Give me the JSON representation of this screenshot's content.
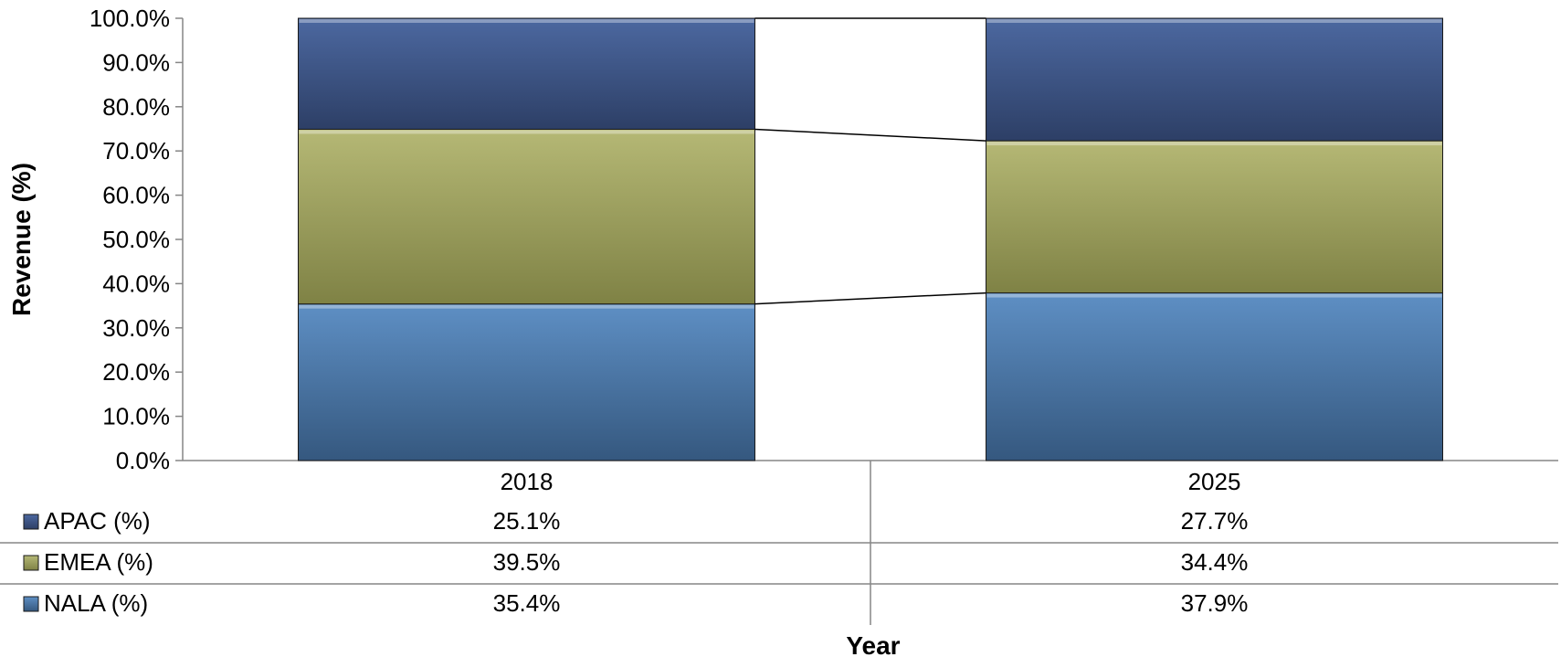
{
  "chart_data": {
    "type": "bar",
    "stacked": true,
    "percent": true,
    "categories": [
      "2018",
      "2025"
    ],
    "series": [
      {
        "name": "NALA (%)",
        "values": [
          35.4,
          37.9
        ],
        "labels": [
          "35.4%",
          "37.9%"
        ],
        "color": "#4A78A8"
      },
      {
        "name": "EMEA (%)",
        "values": [
          39.5,
          34.4
        ],
        "labels": [
          "39.5%",
          "34.4%"
        ],
        "color": "#9FA35E"
      },
      {
        "name": "APAC (%)",
        "values": [
          25.1,
          27.7
        ],
        "labels": [
          "25.1%",
          "27.7%"
        ],
        "color": "#3F5A8A"
      }
    ],
    "table_rows": [
      "APAC (%)",
      "EMEA (%)",
      "NALA (%)"
    ],
    "ylim": [
      0,
      100
    ],
    "yticks": [
      "0.0%",
      "10.0%",
      "20.0%",
      "30.0%",
      "40.0%",
      "50.0%",
      "60.0%",
      "70.0%",
      "80.0%",
      "90.0%",
      "100.0%"
    ],
    "xlabel": "Year",
    "ylabel": "Revenue (%)",
    "series_lines": true,
    "legend": "data-table"
  }
}
